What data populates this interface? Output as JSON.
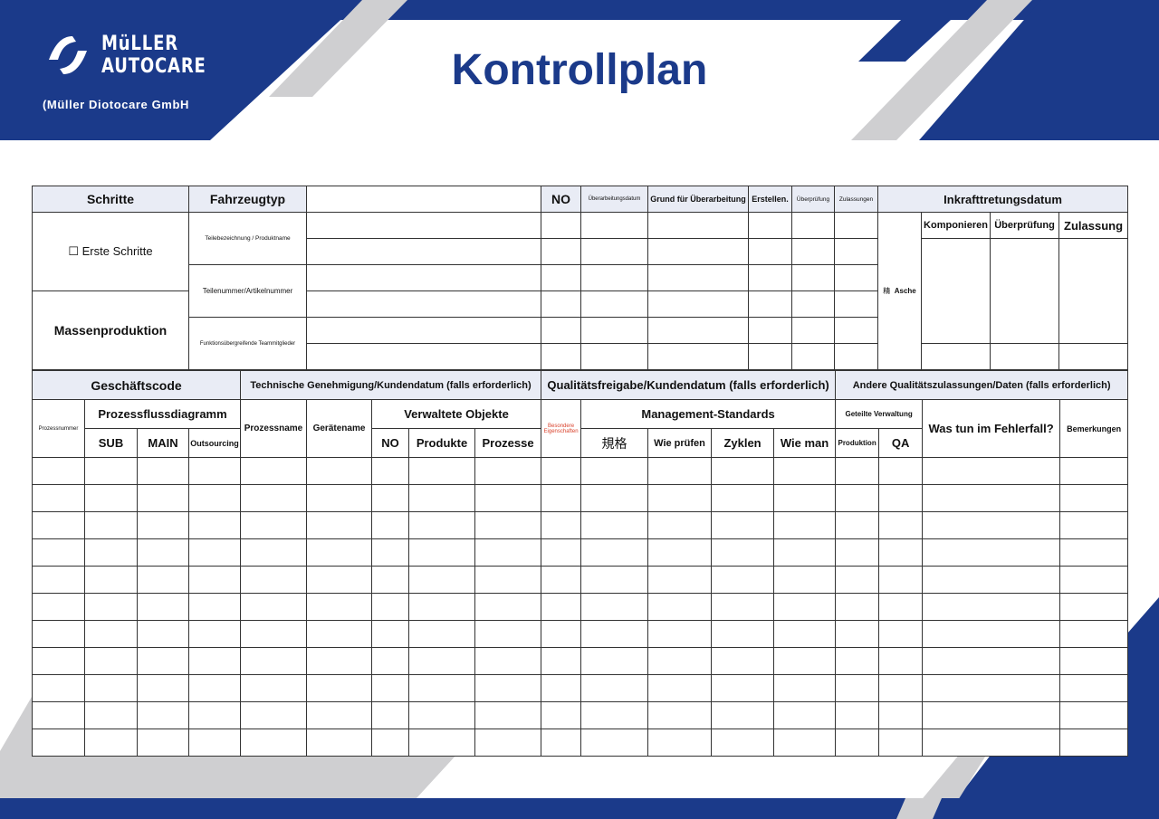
{
  "brand": {
    "logo_line1": "MüLLER",
    "logo_line2": "AUTOCARE",
    "company": "(Müller Diotocare GmbH",
    "colors": {
      "blue": "#1b3a8a",
      "gray": "#cfcfd1",
      "header_bg": "#e9ecf5",
      "red": "#d9412b"
    }
  },
  "title": "Kontrollplan",
  "top": {
    "schritte": "Schritte",
    "fahrzeugtyp": "Fahrzeugtyp",
    "no": "NO",
    "ueberarbeitungsdatum": "Überarbeitungsdatum",
    "grund": "Grund für Überarbeitung",
    "erstellen": "Erstellen.",
    "ueberpruefung": "Überprüfung",
    "zulassungen": "Zulassungen",
    "inkraft": "Inkrafttretungsdatum",
    "erste_schritte": "☐ Erste Schritte",
    "massenproduktion": "Massenproduktion",
    "teilebezeichnung": "Teilebezeichnung / Produktname",
    "teilenummer": "Teilenummer/Artikelnummer",
    "funktions": "Funktionsübergreifende Teammitglieder",
    "asche_glyph": "精",
    "asche": "Asche",
    "komponieren": "Komponieren",
    "ueberpruefung2": "Überprüfung",
    "zulassung": "Zulassung"
  },
  "bottom": {
    "geschaeftscode": "Geschäftscode",
    "technische": "Technische Genehmigung/Kundendatum (falls erforderlich)",
    "qualitaet": "Qualitätsfreigabe/Kundendatum (falls erforderlich)",
    "andere": "Andere Qualitätszulassungen/Daten (falls erforderlich)",
    "prozessnummer": "Prozessnummer",
    "prozessfluss": "Prozessflussdiagramm",
    "sub": "SUB",
    "main": "MAIN",
    "outsourcing": "Outsourcing",
    "prozessname": "Prozessname",
    "geraetename": "Gerätename",
    "verwaltete": "Verwaltete Objekte",
    "no": "NO",
    "produkte": "Produkte",
    "prozesse": "Prozesse",
    "besondere": "Besondere Eigenschaften",
    "management": "Management-Standards",
    "spec": "規格",
    "wie_pruefen": "Wie prüfen",
    "zyklen": "Zyklen",
    "wie_man": "Wie man",
    "geteilte": "Geteilte Verwaltung",
    "produktion": "Produktion",
    "qa": "QA",
    "fehlerfall": "Was tun im Fehlerfall?",
    "bemerkungen": "Bemerkungen"
  }
}
